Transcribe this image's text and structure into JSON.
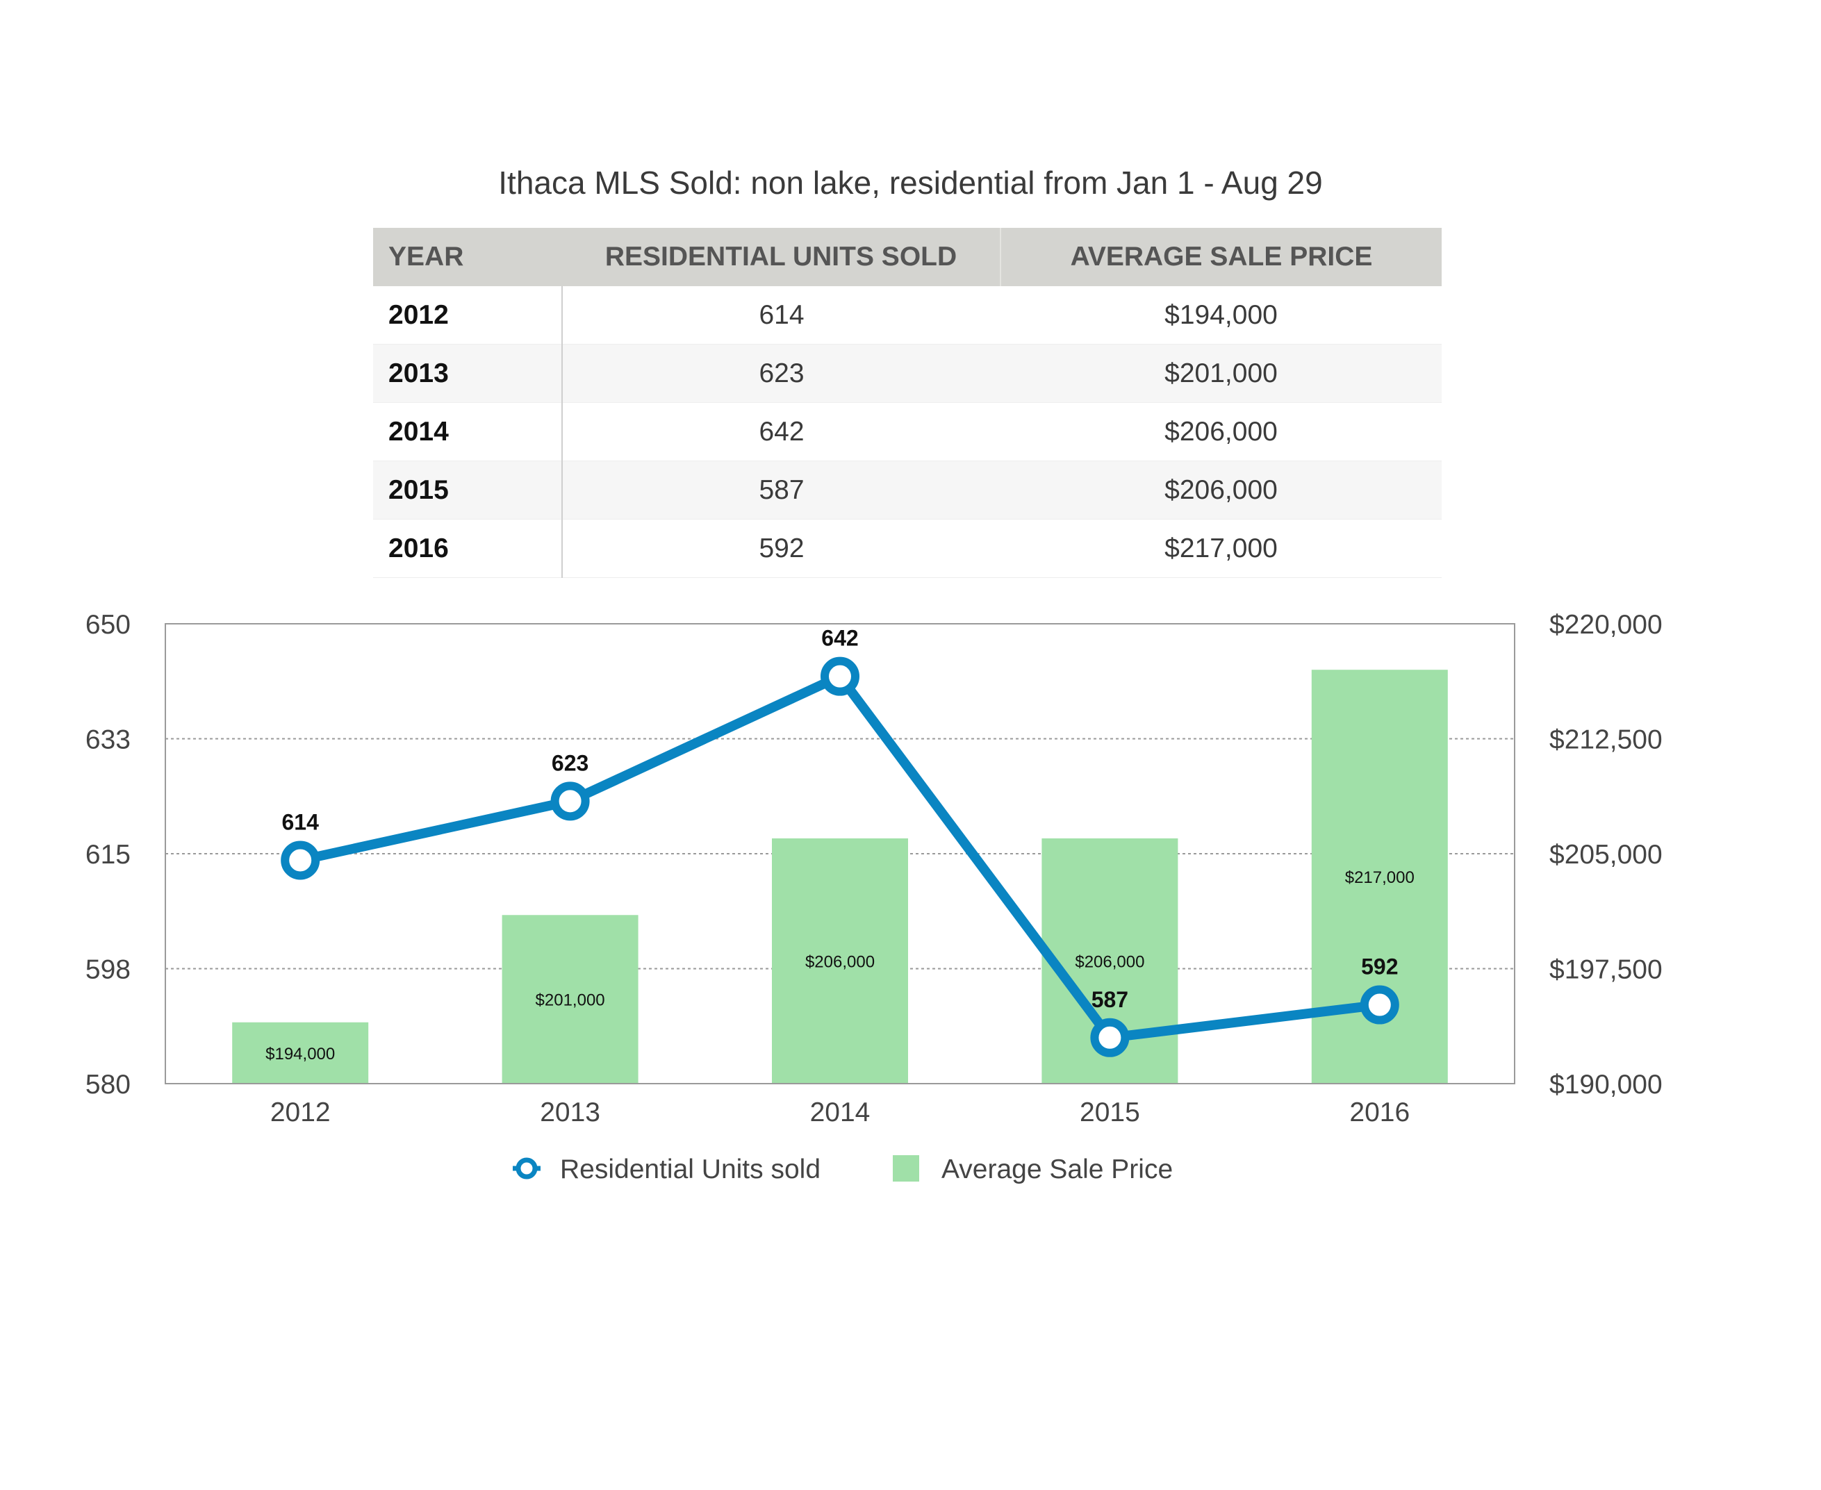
{
  "title": "Ithaca MLS Sold: non lake, residential from Jan 1 - Aug 29",
  "table": {
    "headers": [
      "YEAR",
      "RESIDENTIAL UNITS SOLD",
      "AVERAGE SALE PRICE"
    ],
    "rows": [
      [
        "2012",
        "614",
        "$194,000"
      ],
      [
        "2013",
        "623",
        "$201,000"
      ],
      [
        "2014",
        "642",
        "$206,000"
      ],
      [
        "2015",
        "587",
        "$206,000"
      ],
      [
        "2016",
        "592",
        "$217,000"
      ]
    ]
  },
  "chart_data": {
    "type": "bar",
    "categories": [
      "2012",
      "2013",
      "2014",
      "2015",
      "2016"
    ],
    "series": [
      {
        "name": "Residential Units sold",
        "type": "line",
        "axis": "left",
        "values": [
          614,
          623,
          642,
          587,
          592
        ],
        "labels": [
          "614",
          "623",
          "642",
          "587",
          "592"
        ],
        "color": "#0a85c2"
      },
      {
        "name": "Average Sale Price",
        "type": "bar",
        "axis": "right",
        "values": [
          194000,
          201000,
          206000,
          206000,
          217000
        ],
        "labels": [
          "$194,000",
          "$201,000",
          "$206,000",
          "$206,000",
          "$217,000"
        ],
        "color": "#a0e0a8"
      }
    ],
    "y_left": {
      "ylim": [
        580,
        650
      ],
      "ticks": [
        "650",
        "633",
        "615",
        "598",
        "580"
      ],
      "tick_values": [
        650,
        632.5,
        615,
        597.5,
        580
      ]
    },
    "y_right": {
      "ylim": [
        190000,
        220000
      ],
      "ticks": [
        "$220,000",
        "$212,500",
        "$205,000",
        "$197,500",
        "$190,000"
      ],
      "tick_values": [
        220000,
        212500,
        205000,
        197500,
        190000
      ]
    },
    "grid": true,
    "legend": "bottom"
  }
}
